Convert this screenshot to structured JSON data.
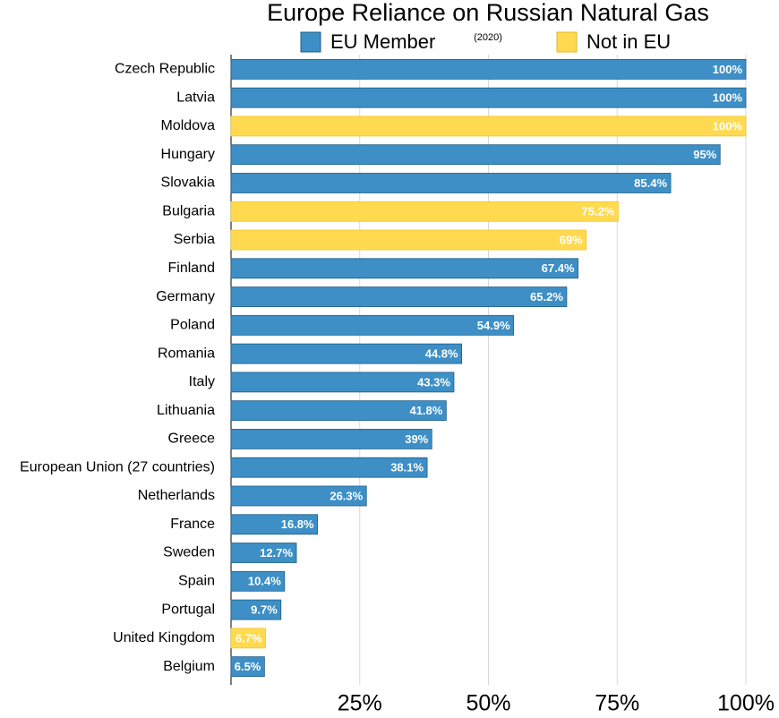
{
  "chart_data": {
    "type": "bar",
    "orientation": "horizontal",
    "title": "Europe Reliance on Russian Natural Gas",
    "subtitle": "(2020)",
    "categories": [
      "Czech Republic",
      "Latvia",
      "Moldova",
      "Hungary",
      "Slovakia",
      "Bulgaria",
      "Serbia",
      "Finland",
      "Germany",
      "Poland",
      "Romania",
      "Italy",
      "Lithuania",
      "Greece",
      "European Union (27 countries)",
      "Netherlands",
      "France",
      "Sweden",
      "Spain",
      "Portugal",
      "United Kingdom",
      "Belgium"
    ],
    "series": [
      {
        "name": "EU Member",
        "color": "#3d8fc6",
        "values": [
          100,
          100,
          null,
          95,
          85.4,
          null,
          null,
          67.4,
          65.2,
          54.9,
          44.8,
          43.3,
          41.8,
          39,
          38.1,
          26.3,
          16.8,
          12.7,
          10.4,
          9.7,
          null,
          6.5
        ],
        "value_labels": [
          "100%",
          "100%",
          null,
          "95%",
          "85.4%",
          null,
          null,
          "67.4%",
          "65.2%",
          "54.9%",
          "44.8%",
          "43.3%",
          "41.8%",
          "39%",
          "38.1%",
          "26.3%",
          "16.8%",
          "12.7%",
          "10.4%",
          "9.7%",
          null,
          "6.5%"
        ]
      },
      {
        "name": "Not in EU",
        "color": "#ffd94f",
        "values": [
          null,
          null,
          100,
          null,
          null,
          75.2,
          69,
          null,
          null,
          null,
          null,
          null,
          null,
          null,
          null,
          null,
          null,
          null,
          null,
          null,
          6.7,
          null
        ],
        "value_labels": [
          null,
          null,
          "100%",
          null,
          null,
          "75.2%",
          "69%",
          null,
          null,
          null,
          null,
          null,
          null,
          null,
          null,
          null,
          null,
          null,
          null,
          null,
          "6.7%",
          null
        ]
      }
    ],
    "xlim": [
      0,
      100
    ],
    "xticks": [
      {
        "value": 25,
        "label": "25%"
      },
      {
        "value": 50,
        "label": "50%"
      },
      {
        "value": 75,
        "label": "75%"
      },
      {
        "value": 100,
        "label": "100%"
      }
    ],
    "grid": true
  }
}
